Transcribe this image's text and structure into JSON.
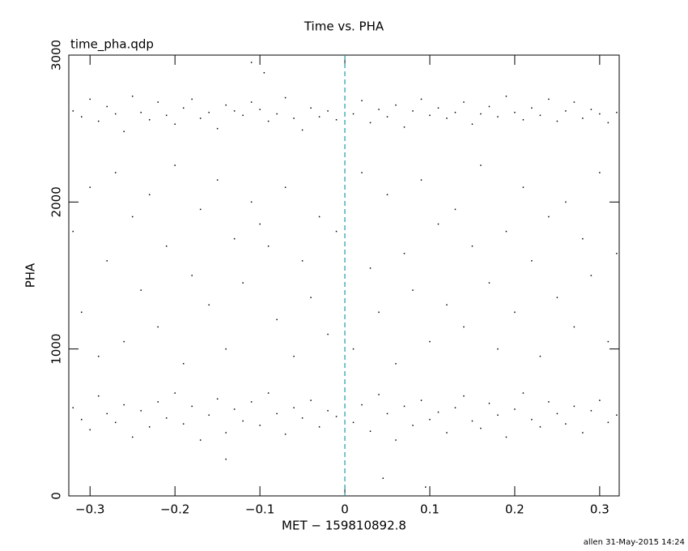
{
  "chart_data": {
    "type": "scatter",
    "title": "Time vs. PHA",
    "annotation": "time_pha.qdp",
    "footer": "allen 31-May-2015 14:24",
    "x_label": "MET − 159810892.8",
    "y_label": "PHA",
    "color": "#000000",
    "xlim": [
      -0.325,
      0.323
    ],
    "ylim": [
      0,
      3000
    ],
    "xticks": [
      {
        "value": -0.3,
        "label": "−0.3"
      },
      {
        "value": -0.2,
        "label": "−0.2"
      },
      {
        "value": -0.1,
        "label": "−0.1"
      },
      0,
      0.1,
      0.2,
      0.3
    ],
    "yticks": [
      0,
      1000,
      2000,
      3000
    ],
    "vline": {
      "x": 0,
      "color": "#1a9aaa",
      "dashed": true
    },
    "x": [
      -0.32,
      -0.31,
      -0.3,
      -0.29,
      -0.28,
      -0.27,
      -0.26,
      -0.25,
      -0.24,
      -0.23,
      -0.22,
      -0.21,
      -0.2,
      -0.19,
      -0.18,
      -0.17,
      -0.16,
      -0.15,
      -0.14,
      -0.13,
      -0.12,
      -0.11,
      -0.1,
      -0.09,
      -0.08,
      -0.07,
      -0.06,
      -0.05,
      -0.04,
      -0.03,
      -0.02,
      -0.01,
      0.01,
      0.02,
      0.03,
      0.04,
      0.05,
      0.06,
      0.07,
      0.08,
      0.09,
      0.1,
      0.11,
      0.12,
      0.13,
      0.14,
      0.15,
      0.16,
      0.17,
      0.18,
      0.19,
      0.2,
      0.21,
      0.22,
      0.23,
      0.24,
      0.25,
      0.26,
      0.27,
      0.28,
      0.29,
      0.3,
      0.31,
      0.32,
      -0.32,
      -0.31,
      -0.3,
      -0.29,
      -0.28,
      -0.27,
      -0.26,
      -0.25,
      -0.24,
      -0.23,
      -0.22,
      -0.21,
      -0.2,
      -0.19,
      -0.18,
      -0.17,
      -0.16,
      -0.15,
      -0.14,
      -0.13,
      -0.12,
      -0.11,
      -0.1,
      -0.09,
      -0.08,
      -0.07,
      -0.06,
      -0.05,
      -0.04,
      -0.03,
      -0.02,
      -0.01,
      0.01,
      0.02,
      0.03,
      0.04,
      0.05,
      0.06,
      0.07,
      0.08,
      0.09,
      0.1,
      0.11,
      0.12,
      0.13,
      0.14,
      0.15,
      0.16,
      0.17,
      0.18,
      0.19,
      0.2,
      0.21,
      0.22,
      0.23,
      0.24,
      0.25,
      0.26,
      0.27,
      0.28,
      0.29,
      0.3,
      0.31,
      0.32,
      -0.32,
      -0.31,
      -0.3,
      -0.29,
      -0.28,
      -0.27,
      -0.26,
      -0.25,
      -0.24,
      -0.23,
      -0.22,
      -0.21,
      -0.2,
      -0.19,
      -0.18,
      -0.17,
      -0.16,
      -0.15,
      -0.14,
      -0.13,
      -0.12,
      -0.11,
      -0.1,
      -0.09,
      -0.08,
      -0.07,
      -0.06,
      -0.05,
      -0.04,
      -0.03,
      -0.02,
      -0.01,
      0.01,
      0.02,
      0.03,
      0.04,
      0.05,
      0.06,
      0.07,
      0.08,
      0.09,
      0.1,
      0.11,
      0.12,
      0.13,
      0.14,
      0.15,
      0.16,
      0.17,
      0.18,
      0.19,
      0.2,
      0.21,
      0.22,
      0.23,
      0.24,
      0.25,
      0.26,
      0.27,
      0.28,
      0.29,
      0.3,
      0.31,
      0.32,
      0.045,
      0.095,
      -0.14,
      -0.11,
      -0.095
    ],
    "y": [
      2620,
      2580,
      2700,
      2550,
      2650,
      2600,
      2480,
      2720,
      2610,
      2560,
      2680,
      2590,
      2530,
      2640,
      2700,
      2570,
      2610,
      2500,
      2660,
      2620,
      2590,
      2680,
      2630,
      2550,
      2600,
      2710,
      2570,
      2490,
      2640,
      2580,
      2620,
      2560,
      2600,
      2690,
      2540,
      2630,
      2580,
      2660,
      2510,
      2620,
      2700,
      2590,
      2640,
      2570,
      2610,
      2680,
      2530,
      2600,
      2650,
      2580,
      2720,
      2610,
      2560,
      2640,
      2590,
      2700,
      2550,
      2620,
      2680,
      2570,
      2630,
      2600,
      2540,
      2610,
      1800,
      1250,
      2100,
      950,
      1600,
      2200,
      1050,
      1900,
      1400,
      2050,
      1150,
      1700,
      2250,
      900,
      1500,
      1950,
      1300,
      2150,
      1000,
      1750,
      1450,
      2000,
      1850,
      1700,
      1200,
      2100,
      950,
      1600,
      1350,
      1900,
      1100,
      1800,
      1000,
      2200,
      1550,
      1250,
      2050,
      900,
      1650,
      1400,
      2150,
      1050,
      1850,
      1300,
      1950,
      1150,
      1700,
      2250,
      1450,
      1000,
      1800,
      1250,
      2100,
      1600,
      950,
      1900,
      1350,
      2000,
      1150,
      1750,
      1500,
      2200,
      1050,
      1650,
      600,
      520,
      450,
      680,
      560,
      500,
      620,
      400,
      580,
      470,
      640,
      530,
      700,
      490,
      610,
      380,
      550,
      660,
      430,
      590,
      510,
      640,
      480,
      700,
      560,
      420,
      600,
      530,
      650,
      470,
      580,
      540,
      500,
      620,
      440,
      690,
      560,
      380,
      610,
      480,
      650,
      520,
      570,
      430,
      600,
      680,
      510,
      460,
      630,
      550,
      400,
      590,
      700,
      520,
      470,
      640,
      560,
      490,
      610,
      430,
      580,
      650,
      500,
      550,
      120,
      60,
      250,
      2950,
      2880
    ]
  }
}
